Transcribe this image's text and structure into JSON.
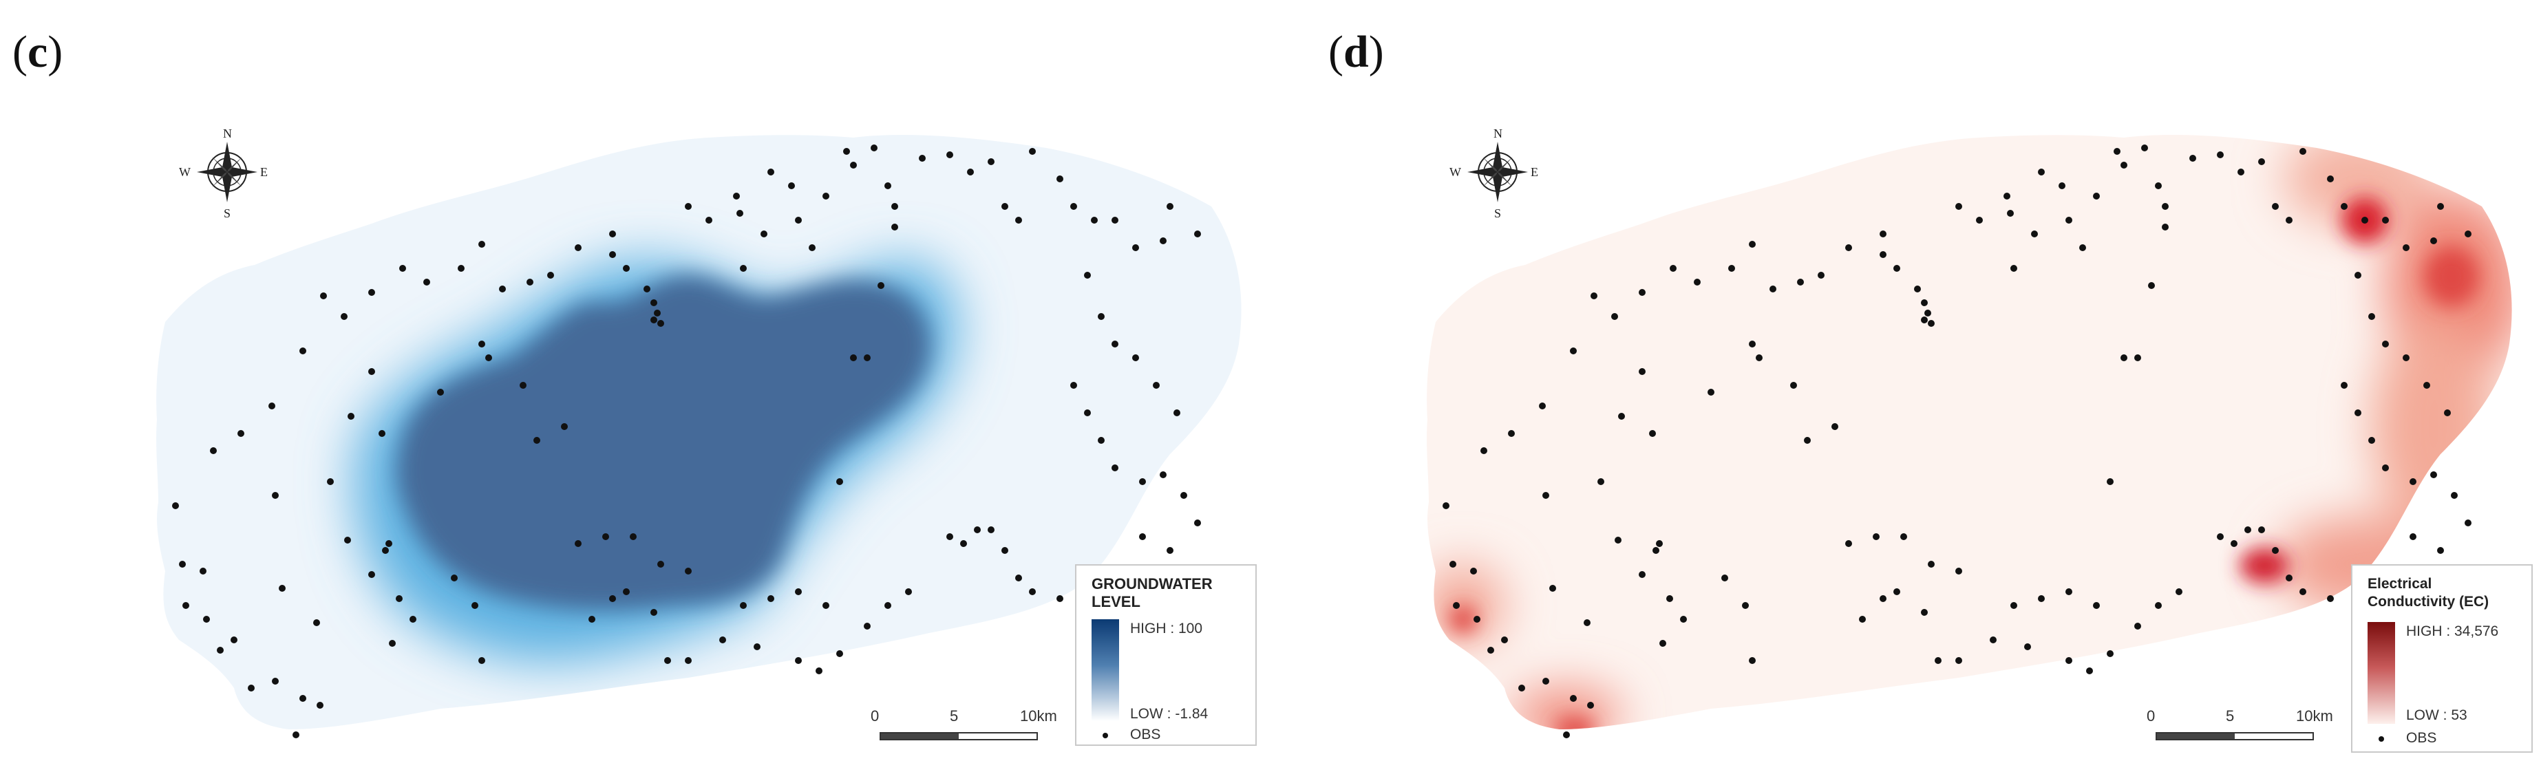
{
  "panels": [
    {
      "label": "(c)",
      "label_letter": "c",
      "legend": {
        "title": "GROUNDWATER LEVEL",
        "high": "HIGH : 100",
        "low": "LOW : -1.84",
        "obs": "OBS",
        "ramp_colors": [
          "#0b3a73",
          "#ffffff"
        ]
      },
      "scale": {
        "ticks": [
          "0",
          "5",
          "10km"
        ]
      },
      "compass": {
        "n": "N",
        "s": "S",
        "e": "E",
        "w": "W"
      }
    },
    {
      "label": "(d)",
      "label_letter": "d",
      "legend": {
        "title": "Electrical Conductivity (EC)",
        "high": "HIGH : 34,576",
        "low": "LOW : 53",
        "obs": "OBS",
        "ramp_colors": [
          "#7a0d0d",
          "#fdf0ec"
        ]
      },
      "scale": {
        "ticks": [
          "0",
          "5",
          "10km"
        ]
      },
      "compass": {
        "n": "N",
        "s": "S",
        "e": "E",
        "w": "W"
      }
    }
  ],
  "colors": {
    "island_light_c": "#eef5fb",
    "core_c": "#456b99",
    "halo_c": "#3aa0d8",
    "island_light_d": "#fdf3ef",
    "hotspot_d": "#e0303a",
    "obs_dot": "#111111"
  }
}
